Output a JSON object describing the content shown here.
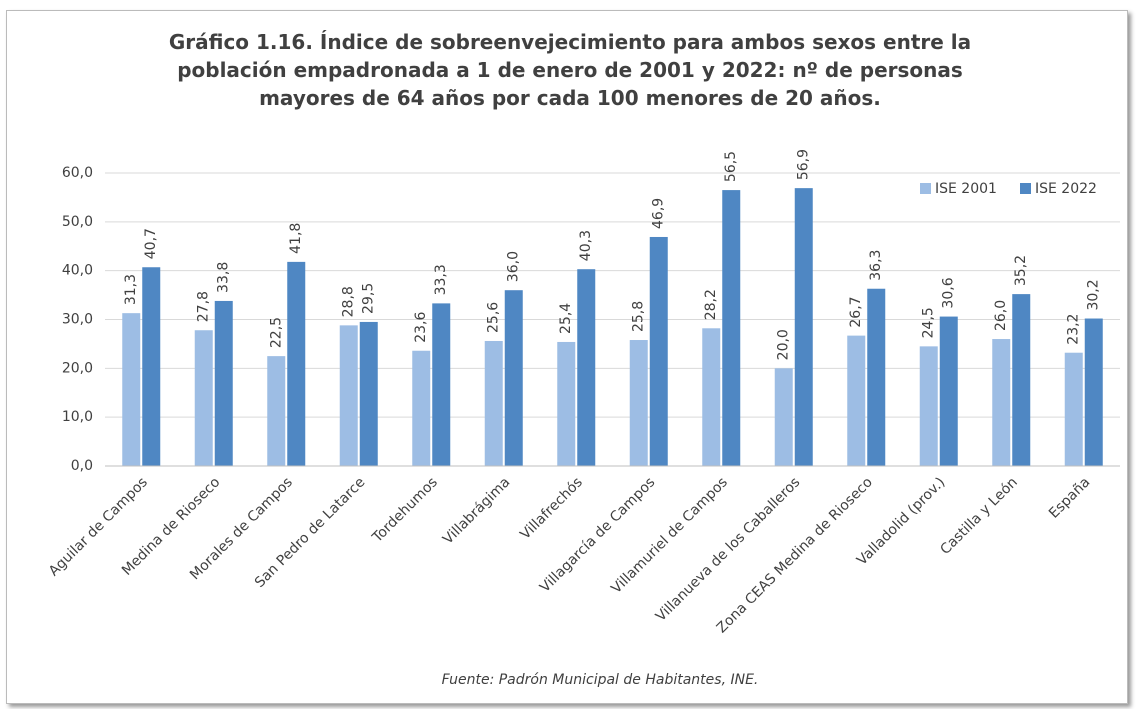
{
  "chart_data": {
    "type": "bar",
    "title": "Gráfico 1.16. Índice de sobreenvejecimiento para ambos sexos entre la población empadronada a 1 de enero de 2001 y 2022: nº de personas mayores de 64 años por cada 100 menores de 20 años.",
    "source": "Fuente: Padrón Municipal de Habitantes, INE.",
    "categories": [
      "Aguilar de Campos",
      "Medina de Rioseco",
      "Morales de Campos",
      "San Pedro de Latarce",
      "Tordehumos",
      "Villabrágima",
      "Villafrechós",
      "Villagarcía de Campos",
      "Villamuriel de Campos",
      "Villanueva de los Caballeros",
      "Zona CEAS Medina de Rioseco",
      "Valladolid (prov.)",
      "Castilla y León",
      "España"
    ],
    "series": [
      {
        "name": "ISE 2001",
        "color": "#9dbde4",
        "values": [
          31.3,
          27.8,
          22.5,
          28.8,
          23.6,
          25.6,
          25.4,
          25.8,
          28.2,
          20.0,
          26.7,
          24.5,
          26.0,
          23.2
        ],
        "value_labels": [
          "31,3",
          "27,8",
          "22,5",
          "28,8",
          "23,6",
          "25,6",
          "25,4",
          "25,8",
          "28,2",
          "20,0",
          "26,7",
          "24,5",
          "26,0",
          "23,2"
        ]
      },
      {
        "name": "ISE 2022",
        "color": "#4f87c3",
        "values": [
          40.7,
          33.8,
          41.8,
          29.5,
          33.3,
          36.0,
          40.3,
          46.9,
          56.5,
          56.9,
          36.3,
          30.6,
          35.2,
          30.2
        ],
        "value_labels": [
          "40,7",
          "33,8",
          "41,8",
          "29,5",
          "33,3",
          "36,0",
          "40,3",
          "46,9",
          "56,5",
          "56,9",
          "36,3",
          "30,6",
          "35,2",
          "30,2"
        ]
      }
    ],
    "ylim": [
      0,
      60
    ],
    "yticks": [
      {
        "value": 0,
        "label": "0,0"
      },
      {
        "value": 10,
        "label": "10,0"
      },
      {
        "value": 20,
        "label": "20,0"
      },
      {
        "value": 30,
        "label": "30,0"
      },
      {
        "value": 40,
        "label": "40,0"
      },
      {
        "value": 50,
        "label": "50,0"
      },
      {
        "value": 60,
        "label": "60,0"
      }
    ],
    "grid": true,
    "legend": "top-right"
  }
}
